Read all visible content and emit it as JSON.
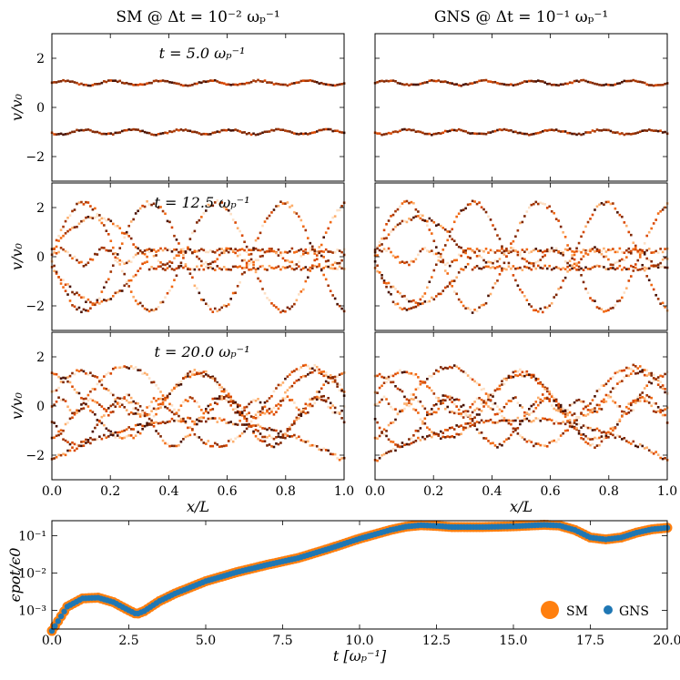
{
  "chart_data": [
    {
      "type": "scatter",
      "title": "SM @ Δt = 10⁻² ωₚ⁻¹",
      "annotations": [
        "t = 5.0 ωₚ⁻¹",
        "t = 12.5 ωₚ⁻¹",
        "t = 20.0 ωₚ⁻¹"
      ],
      "ylabel": "v/v₀",
      "xlabel": "x/L",
      "xlim": [
        0.0,
        1.0
      ],
      "ylim": [
        -3,
        3
      ],
      "xticks": [
        "0.0",
        "0.2",
        "0.4",
        "0.6",
        "0.8",
        "1.0"
      ],
      "yticks": [
        "2",
        "0",
        "−2"
      ],
      "colormap": "oranges-to-dark-red (phase-space density)"
    },
    {
      "type": "scatter",
      "title": "GNS @ Δt = 10⁻¹ ωₚ⁻¹",
      "xlabel": "x/L",
      "xlim": [
        0.0,
        1.0
      ],
      "ylim": [
        -3,
        3
      ],
      "xticks": [
        "0.0",
        "0.2",
        "0.4",
        "0.6",
        "0.8",
        "1.0"
      ]
    },
    {
      "type": "scatter",
      "title": "",
      "xlabel": "t [ωₚ⁻¹]",
      "ylabel": "ϵpot/ϵ0",
      "xlim": [
        0,
        20
      ],
      "ylim_log10": [
        -3.5,
        -0.6
      ],
      "xticks": [
        "0.0",
        "2.5",
        "5.0",
        "7.5",
        "10.0",
        "12.5",
        "15.0",
        "17.5",
        "20.0"
      ],
      "yticks": [
        "10⁻¹",
        "10⁻²",
        "10⁻³"
      ],
      "legend": "lower-right",
      "series": [
        {
          "name": "SM",
          "color": "#ff7f0e"
        },
        {
          "name": "GNS",
          "color": "#1f77b4"
        }
      ],
      "x": [
        0.0,
        0.5,
        1.0,
        1.5,
        2.0,
        2.5,
        2.75,
        3.0,
        3.5,
        4.0,
        5.0,
        6.0,
        7.0,
        8.0,
        9.0,
        10.0,
        11.0,
        11.5,
        12.0,
        12.5,
        13.0,
        14.0,
        15.0,
        16.0,
        16.5,
        17.0,
        17.5,
        18.0,
        18.5,
        19.0,
        19.5,
        20.0
      ],
      "log10_values": [
        -3.55,
        -2.9,
        -2.68,
        -2.66,
        -2.78,
        -3.0,
        -3.1,
        -3.02,
        -2.75,
        -2.55,
        -2.22,
        -1.98,
        -1.78,
        -1.6,
        -1.35,
        -1.08,
        -0.85,
        -0.76,
        -0.72,
        -0.74,
        -0.77,
        -0.77,
        -0.75,
        -0.71,
        -0.73,
        -0.85,
        -1.05,
        -1.1,
        -1.05,
        -0.92,
        -0.83,
        -0.79
      ]
    }
  ]
}
